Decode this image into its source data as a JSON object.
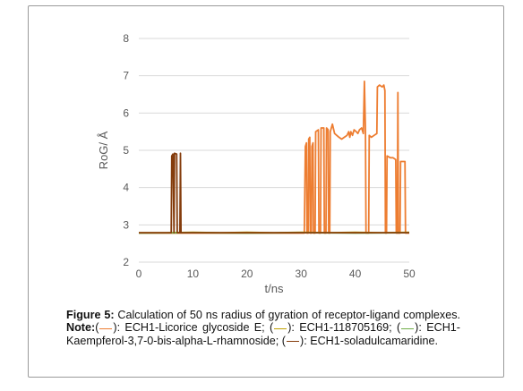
{
  "chart_data": {
    "type": "line",
    "xlabel": "t/ns",
    "ylabel": "RoG/ Å",
    "xlim": [
      0,
      50
    ],
    "ylim": [
      2,
      8
    ],
    "xticks": [
      "0",
      "10",
      "20",
      "30",
      "40",
      "50"
    ],
    "yticks": [
      "2",
      "3",
      "4",
      "5",
      "6",
      "7",
      "8"
    ],
    "grid": "horizontal",
    "series": [
      {
        "color": "#ed7d31",
        "points": [
          [
            0,
            2.78
          ],
          [
            30.6,
            2.78
          ],
          [
            30.8,
            5.1
          ],
          [
            31.0,
            5.2
          ],
          [
            31.1,
            2.78
          ],
          [
            31.3,
            2.78
          ],
          [
            31.4,
            5.3
          ],
          [
            31.6,
            5.35
          ],
          [
            31.7,
            2.78
          ],
          [
            31.9,
            2.78
          ],
          [
            32.0,
            5.1
          ],
          [
            32.2,
            5.2
          ],
          [
            32.3,
            2.78
          ],
          [
            32.6,
            2.78
          ],
          [
            32.7,
            5.5
          ],
          [
            33.2,
            5.55
          ],
          [
            33.3,
            2.78
          ],
          [
            33.6,
            2.78
          ],
          [
            33.7,
            5.6
          ],
          [
            34.2,
            5.6
          ],
          [
            34.3,
            2.78
          ],
          [
            34.6,
            2.78
          ],
          [
            34.7,
            5.6
          ],
          [
            35.0,
            5.55
          ],
          [
            35.1,
            2.78
          ],
          [
            35.3,
            2.78
          ],
          [
            35.4,
            5.5
          ],
          [
            35.8,
            5.7
          ],
          [
            36.2,
            5.45
          ],
          [
            37.0,
            5.35
          ],
          [
            37.5,
            5.3
          ],
          [
            38.0,
            5.35
          ],
          [
            38.5,
            5.4
          ],
          [
            38.8,
            5.5
          ],
          [
            39.0,
            5.35
          ],
          [
            39.2,
            5.5
          ],
          [
            39.5,
            5.4
          ],
          [
            39.8,
            5.55
          ],
          [
            40.2,
            5.5
          ],
          [
            40.5,
            5.45
          ],
          [
            40.8,
            5.55
          ],
          [
            41.2,
            5.6
          ],
          [
            41.5,
            5.45
          ],
          [
            41.7,
            6.85
          ],
          [
            41.9,
            5.5
          ],
          [
            42.0,
            2.78
          ],
          [
            42.5,
            2.78
          ],
          [
            42.6,
            5.4
          ],
          [
            43.0,
            5.35
          ],
          [
            43.5,
            5.4
          ],
          [
            44.0,
            5.45
          ],
          [
            44.1,
            6.7
          ],
          [
            44.5,
            6.75
          ],
          [
            45.0,
            6.7
          ],
          [
            45.3,
            6.75
          ],
          [
            45.5,
            6.6
          ],
          [
            45.6,
            2.78
          ],
          [
            45.8,
            2.78
          ],
          [
            45.9,
            4.85
          ],
          [
            46.5,
            4.8
          ],
          [
            47.0,
            4.8
          ],
          [
            47.5,
            4.75
          ],
          [
            47.6,
            2.78
          ],
          [
            47.8,
            2.78
          ],
          [
            47.9,
            6.55
          ],
          [
            48.0,
            2.78
          ],
          [
            48.3,
            2.78
          ],
          [
            48.4,
            4.7
          ],
          [
            49.2,
            4.7
          ],
          [
            49.3,
            2.78
          ],
          [
            50,
            2.78
          ]
        ]
      },
      {
        "color": "#c0a000",
        "points": [
          [
            0,
            2.79
          ],
          [
            5,
            2.79
          ],
          [
            10,
            2.8
          ],
          [
            15,
            2.79
          ],
          [
            20,
            2.8
          ],
          [
            25,
            2.79
          ],
          [
            30,
            2.8
          ],
          [
            35,
            2.79
          ],
          [
            40,
            2.8
          ],
          [
            45,
            2.79
          ],
          [
            50,
            2.8
          ]
        ]
      },
      {
        "color": "#70ad47",
        "points": [
          [
            0,
            2.78
          ],
          [
            10,
            2.79
          ],
          [
            20,
            2.78
          ],
          [
            30,
            2.79
          ],
          [
            40,
            2.78
          ],
          [
            50,
            2.79
          ]
        ]
      },
      {
        "color": "#843c0c",
        "points": [
          [
            0,
            2.79
          ],
          [
            6.0,
            2.79
          ],
          [
            6.1,
            4.85
          ],
          [
            6.3,
            4.9
          ],
          [
            6.5,
            2.79
          ],
          [
            6.6,
            4.92
          ],
          [
            7.0,
            4.9
          ],
          [
            7.1,
            2.79
          ],
          [
            7.6,
            2.79
          ],
          [
            7.7,
            4.92
          ],
          [
            7.8,
            2.79
          ],
          [
            50,
            2.79
          ]
        ]
      }
    ]
  },
  "caption": {
    "figure_label": "Figure 5:",
    "text1": " Calculation of 50 ns radius of gyration of receptor-ligand complexes. ",
    "note_label": "Note:",
    "open": "(",
    "item1": "): ECH1-Licorice glycoside E; (",
    "item2": "): ECH1-118705169; (",
    "item3": "): ECH1-Kaempferol-3,7-0-bis-alpha-L-rhamnoside; (",
    "item4": "): ECH1-soladulcamaridine."
  }
}
